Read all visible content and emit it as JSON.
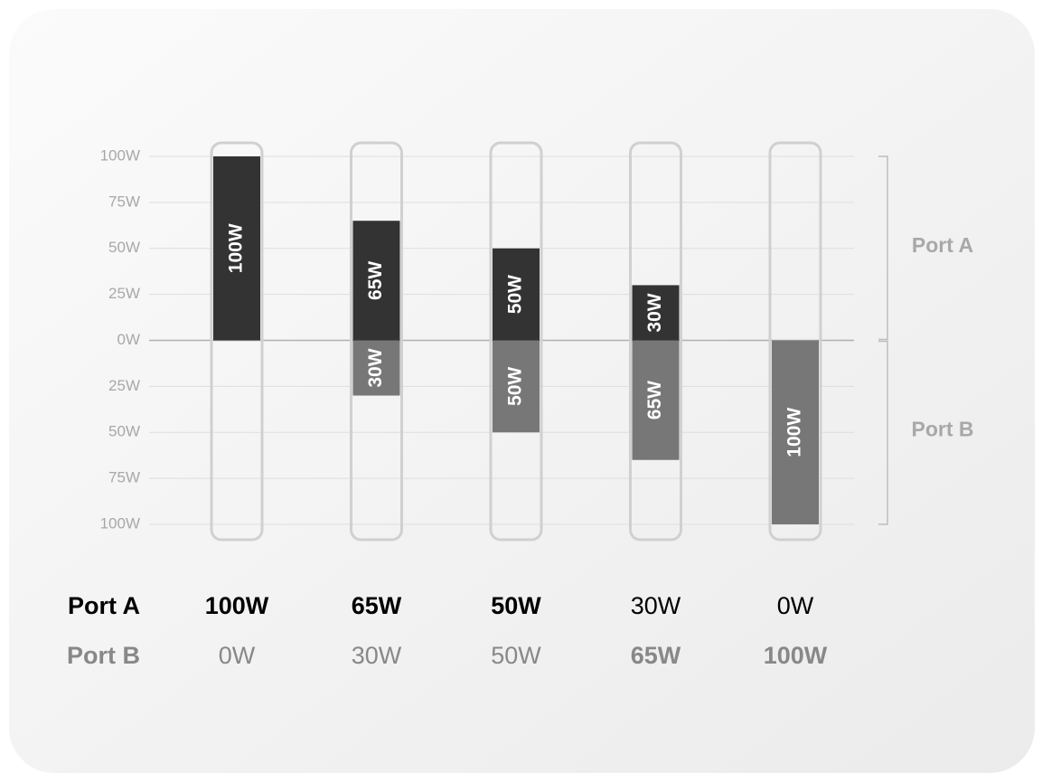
{
  "chart_data": {
    "type": "bar",
    "series": [
      {
        "name": "Port A",
        "color": "#333333",
        "values": [
          100,
          65,
          50,
          30,
          0
        ],
        "value_labels": [
          "100W",
          "65W",
          "50W",
          "30W",
          "0W"
        ]
      },
      {
        "name": "Port B",
        "color": "#777777",
        "values": [
          0,
          -30,
          -50,
          -65,
          -100
        ],
        "value_labels": [
          "0W",
          "30W",
          "50W",
          "65W",
          "100W"
        ]
      }
    ],
    "ylim": [
      -100,
      100
    ],
    "yticks": [
      {
        "value": 100,
        "label": "100W"
      },
      {
        "value": 75,
        "label": "75W"
      },
      {
        "value": 50,
        "label": "50W"
      },
      {
        "value": 25,
        "label": "25W"
      },
      {
        "value": 0,
        "label": "0W"
      },
      {
        "value": -25,
        "label": "25W"
      },
      {
        "value": -50,
        "label": "50W"
      },
      {
        "value": -75,
        "label": "75W"
      },
      {
        "value": -100,
        "label": "100W"
      }
    ],
    "grid": true
  }
}
